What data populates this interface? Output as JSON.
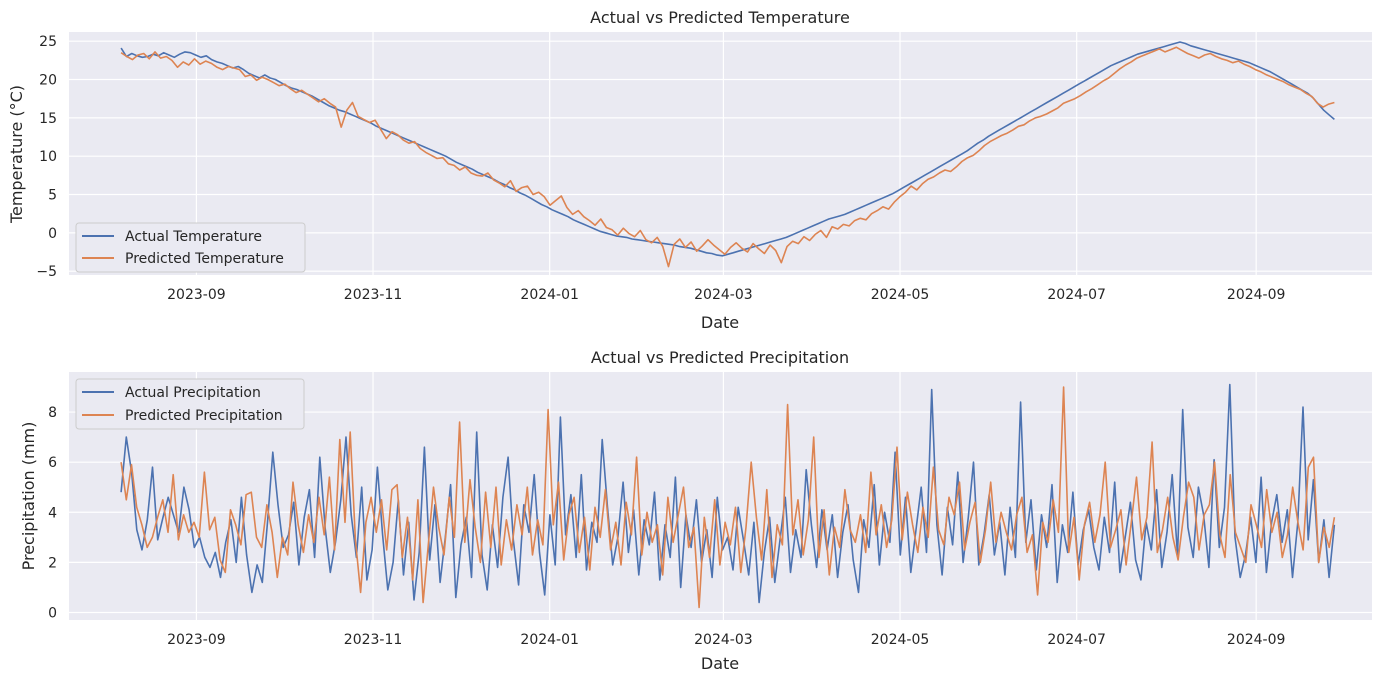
{
  "colors": {
    "actual": "#4c72b0",
    "predicted": "#dd8452",
    "plot_bg": "#eaeaf2",
    "grid": "#ffffff"
  },
  "chart_data": [
    {
      "type": "line",
      "title": "Actual vs Predicted Temperature",
      "xlabel": "Date",
      "ylabel": "Temperature (°C)",
      "xlim": [
        "2023-07-19",
        "2024-10-11"
      ],
      "ylim": [
        -5.5,
        26.2
      ],
      "xticks": [
        "2023-09",
        "2023-11",
        "2024-01",
        "2024-03",
        "2024-05",
        "2024-07",
        "2024-09"
      ],
      "yticks": [
        "25",
        "20",
        "15",
        "10",
        "5",
        "0",
        "−5"
      ],
      "ytick_values": [
        25,
        20,
        15,
        10,
        5,
        0,
        -5
      ],
      "legend": "lower-left",
      "grid": true,
      "x_start": "2023-08-06",
      "x_end": "2024-09-28",
      "series": [
        {
          "name": "Actual Temperature",
          "color_key": "actual",
          "values": [
            24.1,
            23.0,
            23.4,
            23.1,
            22.9,
            23.0,
            23.3,
            23.1,
            23.5,
            23.2,
            22.9,
            23.3,
            23.6,
            23.5,
            23.2,
            22.9,
            23.1,
            22.6,
            22.3,
            22.1,
            21.8,
            21.5,
            21.7,
            21.3,
            20.8,
            20.5,
            20.2,
            20.6,
            20.2,
            20.0,
            19.6,
            19.2,
            18.9,
            18.7,
            18.4,
            18.1,
            17.8,
            17.4,
            17.0,
            16.6,
            16.3,
            16.0,
            15.8,
            15.5,
            15.2,
            14.9,
            14.6,
            14.3,
            13.9,
            13.6,
            13.3,
            13.0,
            12.7,
            12.4,
            12.1,
            11.8,
            11.5,
            11.2,
            10.9,
            10.6,
            10.3,
            10.0,
            9.6,
            9.2,
            8.9,
            8.6,
            8.3,
            7.9,
            7.6,
            7.3,
            7.0,
            6.6,
            6.3,
            5.9,
            5.6,
            5.2,
            4.9,
            4.5,
            4.1,
            3.7,
            3.4,
            3.0,
            2.7,
            2.4,
            2.1,
            1.7,
            1.4,
            1.1,
            0.8,
            0.5,
            0.2,
            0.0,
            -0.2,
            -0.4,
            -0.5,
            -0.6,
            -0.8,
            -0.9,
            -1.0,
            -1.1,
            -1.2,
            -1.3,
            -1.4,
            -1.5,
            -1.6,
            -1.8,
            -1.9,
            -2.0,
            -2.2,
            -2.4,
            -2.6,
            -2.7,
            -2.9,
            -3.0,
            -2.8,
            -2.6,
            -2.4,
            -2.2,
            -2.0,
            -1.8,
            -1.6,
            -1.4,
            -1.2,
            -1.0,
            -0.8,
            -0.6,
            -0.3,
            0.0,
            0.3,
            0.6,
            0.9,
            1.2,
            1.5,
            1.8,
            2.0,
            2.2,
            2.4,
            2.7,
            3.0,
            3.3,
            3.6,
            3.9,
            4.2,
            4.5,
            4.8,
            5.1,
            5.5,
            5.9,
            6.3,
            6.7,
            7.1,
            7.5,
            7.9,
            8.3,
            8.7,
            9.1,
            9.5,
            9.9,
            10.3,
            10.7,
            11.2,
            11.7,
            12.1,
            12.6,
            13.0,
            13.4,
            13.8,
            14.2,
            14.6,
            15.0,
            15.4,
            15.8,
            16.2,
            16.6,
            17.0,
            17.4,
            17.8,
            18.2,
            18.6,
            19.0,
            19.4,
            19.8,
            20.2,
            20.6,
            21.0,
            21.4,
            21.8,
            22.1,
            22.4,
            22.7,
            23.0,
            23.3,
            23.5,
            23.7,
            23.9,
            24.1,
            24.3,
            24.5,
            24.7,
            24.9,
            24.7,
            24.4,
            24.2,
            24.0,
            23.8,
            23.6,
            23.4,
            23.2,
            23.0,
            22.8,
            22.6,
            22.4,
            22.2,
            21.9,
            21.6,
            21.3,
            21.0,
            20.6,
            20.2,
            19.8,
            19.4,
            19.0,
            18.6,
            18.2,
            17.6,
            16.8,
            16.0,
            15.4,
            14.8
          ]
        },
        {
          "name": "Predicted Temperature",
          "color_key": "predicted",
          "values": [
            23.5,
            23.0,
            22.6,
            23.2,
            23.4,
            22.7,
            23.6,
            22.8,
            23.0,
            22.5,
            21.6,
            22.3,
            21.9,
            22.7,
            22.0,
            22.4,
            22.1,
            21.6,
            21.3,
            21.7,
            21.5,
            21.3,
            20.4,
            20.6,
            19.9,
            20.3,
            20.0,
            19.6,
            19.2,
            19.4,
            18.8,
            18.3,
            18.6,
            18.1,
            17.6,
            17.1,
            17.5,
            16.9,
            16.4,
            13.8,
            16.0,
            17.0,
            15.2,
            14.8,
            14.4,
            14.7,
            13.5,
            12.3,
            13.2,
            12.8,
            12.1,
            11.7,
            11.9,
            11.0,
            10.5,
            10.1,
            9.7,
            9.8,
            9.0,
            8.8,
            8.2,
            8.6,
            7.8,
            7.5,
            7.4,
            7.8,
            6.9,
            6.5,
            6.0,
            6.8,
            5.4,
            5.9,
            6.1,
            5.0,
            5.3,
            4.7,
            3.6,
            4.2,
            4.8,
            3.3,
            2.4,
            2.9,
            2.1,
            1.6,
            1.0,
            1.8,
            0.7,
            0.4,
            -0.3,
            0.6,
            -0.1,
            -0.5,
            0.3,
            -0.9,
            -1.3,
            -0.6,
            -1.8,
            -4.4,
            -1.5,
            -0.8,
            -1.9,
            -1.2,
            -2.4,
            -1.7,
            -0.9,
            -1.6,
            -2.2,
            -2.8,
            -1.9,
            -1.3,
            -2.0,
            -2.5,
            -1.4,
            -2.1,
            -2.7,
            -1.6,
            -2.3,
            -3.9,
            -1.8,
            -1.1,
            -1.4,
            -0.5,
            -1.0,
            -0.2,
            0.3,
            -0.6,
            0.8,
            0.5,
            1.1,
            0.9,
            1.6,
            1.9,
            1.7,
            2.5,
            2.9,
            3.4,
            3.1,
            4.0,
            4.7,
            5.3,
            6.1,
            5.6,
            6.4,
            7.0,
            7.3,
            7.8,
            8.2,
            8.0,
            8.6,
            9.3,
            9.8,
            10.1,
            10.7,
            11.4,
            11.9,
            12.3,
            12.7,
            13.0,
            13.4,
            13.9,
            14.1,
            14.6,
            15.0,
            15.2,
            15.5,
            15.9,
            16.3,
            16.9,
            17.2,
            17.5,
            17.9,
            18.4,
            18.8,
            19.3,
            19.8,
            20.2,
            20.8,
            21.4,
            21.9,
            22.3,
            22.8,
            23.1,
            23.4,
            23.7,
            24.0,
            23.6,
            23.9,
            24.2,
            23.8,
            23.4,
            23.1,
            22.8,
            23.2,
            23.4,
            23.0,
            22.7,
            22.5,
            22.2,
            22.4,
            22.0,
            21.7,
            21.3,
            21.0,
            20.6,
            20.3,
            20.0,
            19.7,
            19.3,
            19.0,
            18.7,
            18.2,
            17.8,
            16.9,
            16.4,
            16.8,
            17.0
          ]
        }
      ]
    },
    {
      "type": "line",
      "title": "Actual vs Predicted Precipitation",
      "xlabel": "Date",
      "ylabel": "Precipitation (mm)",
      "xlim": [
        "2023-07-19",
        "2024-10-11"
      ],
      "ylim": [
        -0.3,
        9.6
      ],
      "xticks": [
        "2023-09",
        "2023-11",
        "2024-01",
        "2024-03",
        "2024-05",
        "2024-07",
        "2024-09"
      ],
      "yticks": [
        "0",
        "2",
        "4",
        "6",
        "8"
      ],
      "ytick_values": [
        0,
        2,
        4,
        6,
        8
      ],
      "legend": "upper-left",
      "grid": true,
      "x_start": "2023-08-06",
      "x_end": "2024-09-28",
      "series": [
        {
          "name": "Actual Precipitation",
          "color_key": "actual",
          "values": [
            4.8,
            7.0,
            5.6,
            3.3,
            2.5,
            3.7,
            5.8,
            2.9,
            3.8,
            4.6,
            3.9,
            3.2,
            5.0,
            4.1,
            2.6,
            3.0,
            2.2,
            1.8,
            2.4,
            1.4,
            2.8,
            3.7,
            2.0,
            4.6,
            2.3,
            0.8,
            1.9,
            1.2,
            3.6,
            6.4,
            4.3,
            2.6,
            3.1,
            4.4,
            1.9,
            3.8,
            4.9,
            2.2,
            6.2,
            3.4,
            1.6,
            2.8,
            4.5,
            7.0,
            3.9,
            2.2,
            5.0,
            1.3,
            2.5,
            5.8,
            3.1,
            0.9,
            2.0,
            4.5,
            1.5,
            3.6,
            0.5,
            2.4,
            6.6,
            2.1,
            4.3,
            1.2,
            3.0,
            5.1,
            0.6,
            2.7,
            3.8,
            1.4,
            7.2,
            2.3,
            0.9,
            3.5,
            1.8,
            4.6,
            6.2,
            2.9,
            1.1,
            4.3,
            3.2,
            5.5,
            2.4,
            0.7,
            3.9,
            1.9,
            7.8,
            3.1,
            4.7,
            2.2,
            5.5,
            1.7,
            3.6,
            2.8,
            6.9,
            4.2,
            1.9,
            3.0,
            5.2,
            2.4,
            4.1,
            1.5,
            3.7,
            2.7,
            4.8,
            1.3,
            3.5,
            2.2,
            5.4,
            1.0,
            3.9,
            2.6,
            4.5,
            2.0,
            3.3,
            1.4,
            4.6,
            2.5,
            3.0,
            1.7,
            4.2,
            2.9,
            1.5,
            3.6,
            0.4,
            2.4,
            3.8,
            1.2,
            2.9,
            4.6,
            1.6,
            3.3,
            2.2,
            5.7,
            3.5,
            1.8,
            4.1,
            2.5,
            3.9,
            1.4,
            3.2,
            4.3,
            2.1,
            0.8,
            3.7,
            2.6,
            5.1,
            1.9,
            4.0,
            2.8,
            6.4,
            2.3,
            4.6,
            1.6,
            3.3,
            5.0,
            2.4,
            8.9,
            3.5,
            1.5,
            4.2,
            2.7,
            5.6,
            2.0,
            3.8,
            6.0,
            1.9,
            3.1,
            4.7,
            2.3,
            3.6,
            1.5,
            4.2,
            2.2,
            8.4,
            2.8,
            4.5,
            1.7,
            3.9,
            2.6,
            5.1,
            1.2,
            3.5,
            2.4,
            4.8,
            1.9,
            3.3,
            4.1,
            2.6,
            1.7,
            3.8,
            2.4,
            5.2,
            1.6,
            3.0,
            4.4,
            2.1,
            1.3,
            3.6,
            2.5,
            4.9,
            1.8,
            3.2,
            5.5,
            2.3,
            8.1,
            3.4,
            2.2,
            5.0,
            3.9,
            1.8,
            6.1,
            2.6,
            4.2,
            9.1,
            3.0,
            1.4,
            2.3,
            3.8,
            2.0,
            5.4,
            1.6,
            3.6,
            4.7,
            2.8,
            4.1,
            1.4,
            3.6,
            8.2,
            2.9,
            5.3,
            2.0,
            3.7,
            1.4,
            3.5
          ]
        },
        {
          "name": "Predicted Precipitation",
          "color_key": "predicted",
          "values": [
            6.0,
            4.5,
            5.9,
            4.2,
            3.5,
            2.6,
            3.0,
            3.8,
            4.5,
            3.2,
            5.5,
            2.9,
            3.9,
            3.2,
            3.6,
            3.0,
            5.6,
            3.3,
            3.8,
            2.1,
            1.6,
            4.1,
            3.5,
            2.7,
            4.7,
            4.8,
            3.0,
            2.6,
            4.3,
            3.2,
            1.4,
            3.0,
            2.3,
            5.2,
            3.5,
            2.4,
            3.9,
            2.8,
            4.6,
            3.1,
            5.4,
            2.5,
            6.9,
            3.6,
            7.2,
            2.9,
            0.8,
            3.6,
            4.6,
            3.2,
            4.5,
            2.5,
            4.9,
            5.1,
            2.2,
            3.8,
            1.3,
            4.5,
            0.4,
            2.7,
            5.0,
            3.4,
            2.3,
            4.6,
            3.0,
            7.6,
            2.8,
            5.3,
            3.4,
            2.0,
            4.8,
            2.6,
            5.0,
            1.9,
            3.7,
            2.5,
            4.3,
            3.1,
            5.0,
            2.3,
            3.7,
            2.7,
            8.1,
            3.5,
            5.2,
            2.1,
            3.9,
            4.6,
            2.4,
            3.8,
            1.7,
            4.2,
            3.0,
            4.9,
            2.5,
            3.6,
            1.9,
            4.4,
            3.1,
            6.2,
            2.3,
            4.0,
            2.8,
            3.5,
            1.5,
            4.6,
            2.8,
            3.9,
            5.0,
            2.6,
            3.4,
            0.2,
            3.8,
            2.2,
            4.5,
            1.9,
            3.6,
            2.7,
            4.2,
            1.6,
            3.4,
            6.0,
            3.8,
            2.1,
            4.9,
            1.4,
            3.5,
            2.7,
            8.3,
            3.1,
            4.5,
            2.3,
            3.7,
            7.0,
            2.2,
            4.1,
            1.5,
            3.4,
            2.6,
            4.9,
            3.3,
            2.8,
            3.9,
            2.4,
            5.6,
            3.1,
            4.3,
            2.6,
            3.7,
            6.6,
            2.9,
            4.8,
            3.5,
            2.4,
            4.2,
            3.0,
            5.8,
            3.3,
            2.7,
            4.6,
            3.9,
            5.2,
            2.5,
            3.6,
            4.4,
            2.0,
            3.3,
            5.2,
            2.8,
            4.0,
            3.2,
            2.5,
            3.9,
            4.6,
            2.4,
            3.1,
            0.7,
            3.6,
            2.8,
            4.5,
            3.2,
            9.0,
            2.4,
            3.8,
            1.3,
            3.5,
            4.4,
            2.8,
            3.9,
            6.0,
            2.6,
            3.3,
            4.1,
            1.9,
            3.6,
            5.4,
            2.9,
            3.8,
            6.8,
            2.4,
            3.3,
            4.6,
            3.0,
            2.1,
            3.8,
            5.2,
            4.6,
            2.5,
            3.9,
            4.3,
            6.0,
            3.1,
            2.2,
            5.5,
            3.2,
            2.6,
            2.0,
            4.3,
            3.5,
            2.6,
            4.9,
            3.2,
            4.0,
            2.2,
            3.1,
            5.0,
            3.6,
            2.5,
            5.8,
            6.2,
            2.0,
            3.4,
            2.6,
            3.8
          ]
        }
      ]
    }
  ]
}
